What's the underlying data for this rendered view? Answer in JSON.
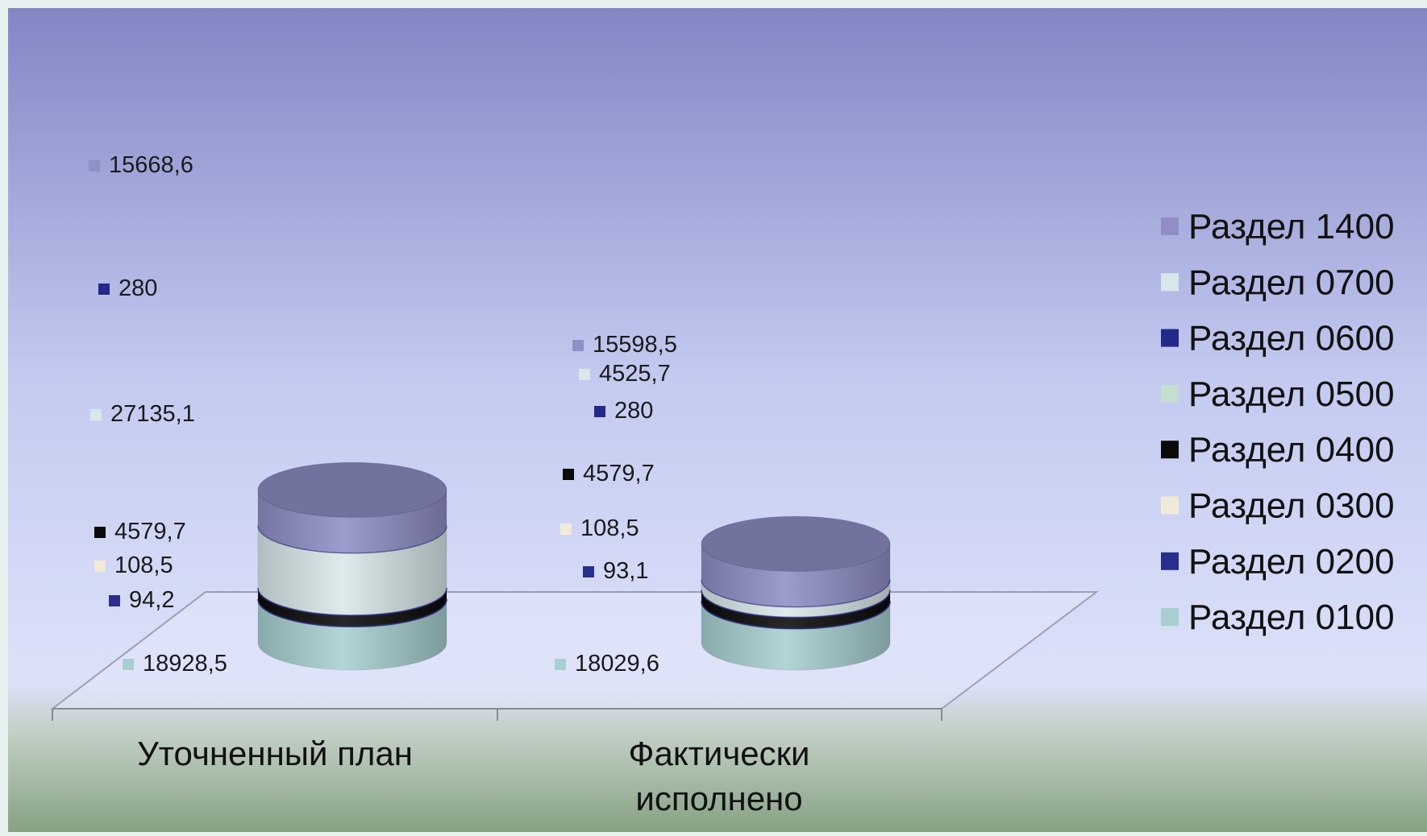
{
  "chart_data": {
    "type": "bar",
    "stacked": true,
    "style": "3d-cylinder",
    "title": "",
    "xlabel": "",
    "ylabel": "",
    "categories": [
      "Уточненный  план",
      "Фактически исполнено"
    ],
    "category_lines": [
      [
        "Уточненный  план"
      ],
      [
        "Фактически",
        "исполнено"
      ]
    ],
    "series": [
      {
        "name": "Раздел 0100",
        "values": [
          18928.5,
          18029.6
        ],
        "labels": [
          "18928,5",
          "18029,6"
        ],
        "color": "#a7cfd0"
      },
      {
        "name": "Раздел 0200",
        "values": [
          94.2,
          93.1
        ],
        "labels": [
          "94,2",
          "93,1"
        ],
        "color": "#2a2e8c"
      },
      {
        "name": "Раздел 0300",
        "values": [
          108.5,
          108.5
        ],
        "labels": [
          "108,5",
          "108,5"
        ],
        "color": "#f2ead8"
      },
      {
        "name": "Раздел 0400",
        "values": [
          4579.7,
          4579.7
        ],
        "labels": [
          "4579,7",
          "4579,7"
        ],
        "color": "#0a0a0a"
      },
      {
        "name": "Раздел 0500",
        "values": [
          0,
          0
        ],
        "labels": [
          "",
          ""
        ],
        "color": "#c6ddd2"
      },
      {
        "name": "Раздел 0600",
        "values": [
          280,
          280
        ],
        "labels": [
          "280",
          "280"
        ],
        "color": "#26278a"
      },
      {
        "name": "Раздел 0700",
        "values": [
          27135.1,
          4525.7
        ],
        "labels": [
          "27135,1",
          "4525,7"
        ],
        "color": "#d8e8ea"
      },
      {
        "name": "Раздел 1400",
        "values": [
          15668.6,
          15598.5
        ],
        "labels": [
          "15668,6",
          "15598,5"
        ],
        "color": "#8f8fc6"
      }
    ],
    "legend_position": "right",
    "grid": false,
    "colors": {
      "background_top": "#8386c4",
      "background_mid": "#d6dcf7",
      "background_bottom": "#8fa98c",
      "frame": "#e6f1ef"
    }
  }
}
